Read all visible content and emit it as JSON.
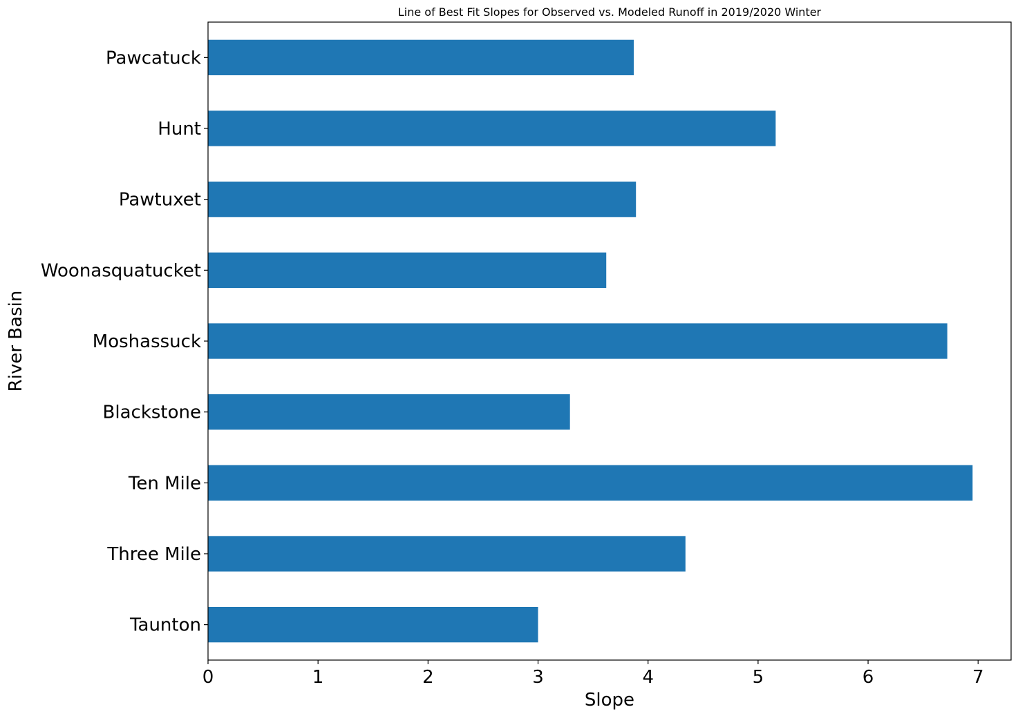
{
  "chart_data": {
    "type": "bar",
    "orientation": "horizontal",
    "title": "Line of Best Fit Slopes for Observed vs. Modeled Runoff in 2019/2020 Winter",
    "xlabel": "Slope",
    "ylabel": "River Basin",
    "categories": [
      "Pawcatuck",
      "Hunt",
      "Pawtuxet",
      "Woonasquatucket",
      "Moshassuck",
      "Blackstone",
      "Ten Mile",
      "Three Mile",
      "Taunton"
    ],
    "values": [
      3.87,
      5.16,
      3.89,
      3.62,
      6.72,
      3.29,
      6.95,
      4.34,
      3.0
    ],
    "xlim": [
      0,
      7.3
    ],
    "xticks": [
      "0",
      "1",
      "2",
      "3",
      "4",
      "5",
      "6",
      "7"
    ],
    "grid": false,
    "legend": "none",
    "bar_color": "#1f77b4"
  }
}
